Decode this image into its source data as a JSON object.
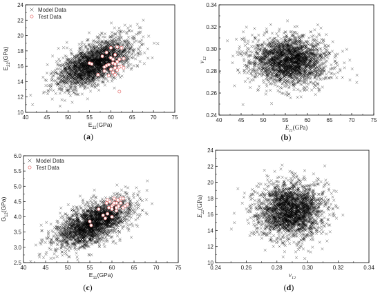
{
  "chart_data": [
    {
      "id": "a",
      "type": "scatter",
      "caption": "(a)",
      "xlabel": "E",
      "xlabel_sub": "11",
      "xlabel_unit": "(GPa)",
      "ylabel": "E",
      "ylabel_sub": "22",
      "ylabel_unit": "(GPa)",
      "label_style": "upright",
      "xlim": [
        40,
        75
      ],
      "ylim": [
        10,
        24
      ],
      "xticks": [
        "40",
        "45",
        "50",
        "55",
        "60",
        "65",
        "70",
        "75"
      ],
      "yticks": [
        "10",
        "12",
        "14",
        "16",
        "18",
        "20",
        "22",
        "24"
      ],
      "legend": {
        "position": "top-left",
        "entries": [
          "Model Data",
          "Test Data"
        ]
      },
      "model": {
        "n": 2400,
        "mx": 56,
        "my": 16.3,
        "sx": 4.3,
        "sy": 1.6,
        "rho": 0.6,
        "color": "#000000"
      },
      "test_color": "#e87b7b",
      "test_points": [
        [
          55,
          16.4
        ],
        [
          55.5,
          16.3
        ],
        [
          57,
          14.9
        ],
        [
          58,
          17.3
        ],
        [
          58.5,
          15.9
        ],
        [
          59,
          16.1
        ],
        [
          59,
          17.8
        ],
        [
          59.5,
          16.2
        ],
        [
          60,
          15.6
        ],
        [
          60,
          17.1
        ],
        [
          60,
          18.4
        ],
        [
          60.5,
          16.4
        ],
        [
          60.5,
          15.2
        ],
        [
          61,
          16.3
        ],
        [
          61,
          17.5
        ],
        [
          61,
          15.8
        ],
        [
          61.5,
          18.5
        ],
        [
          61.5,
          16.6
        ],
        [
          62,
          15.9
        ],
        [
          62,
          16.9
        ],
        [
          62.5,
          18.4
        ],
        [
          62.5,
          16.0
        ],
        [
          63,
          15.8
        ],
        [
          61.5,
          15.5
        ],
        [
          62,
          12.7
        ],
        [
          59.5,
          14.8
        ],
        [
          58.5,
          15.4
        ],
        [
          60.5,
          16.9
        ],
        [
          61,
          14.9
        ],
        [
          63,
          17.0
        ]
      ]
    },
    {
      "id": "b",
      "type": "scatter",
      "caption": "(b)",
      "xlabel": "E",
      "xlabel_sub": "11",
      "xlabel_unit": "(GPa)",
      "ylabel": "v",
      "ylabel_sub": "12",
      "ylabel_unit": "",
      "label_style": "italic",
      "xlim": [
        40,
        75
      ],
      "ylim": [
        0.24,
        0.34
      ],
      "xticks": [
        "40",
        "45",
        "50",
        "55",
        "60",
        "65",
        "70",
        "75"
      ],
      "yticks": [
        "0.24",
        "0.26",
        "0.28",
        "0.30",
        "0.32",
        "0.34"
      ],
      "model": {
        "n": 2400,
        "mx": 56,
        "my": 0.289,
        "sx": 4.3,
        "sy": 0.011,
        "rho": 0.0,
        "color": "#000000"
      }
    },
    {
      "id": "c",
      "type": "scatter",
      "caption": "(c)",
      "xlabel": "E",
      "xlabel_sub": "11",
      "xlabel_unit": "(GPa)",
      "ylabel": "G",
      "ylabel_sub": "12",
      "ylabel_unit": "(GPa)",
      "label_style": "upright",
      "xlim": [
        40,
        75
      ],
      "ylim": [
        2.5,
        6.0
      ],
      "xticks": [
        "40",
        "45",
        "50",
        "55",
        "60",
        "65",
        "70",
        "75"
      ],
      "yticks": [
        "2.5",
        "3.0",
        "3.5",
        "4.0",
        "4.5",
        "5.0",
        "5.5",
        "6.0"
      ],
      "legend": {
        "position": "top-left",
        "entries": [
          "Model Data",
          "Test Data"
        ]
      },
      "model": {
        "n": 2400,
        "mx": 56,
        "my": 3.8,
        "sx": 4.3,
        "sy": 0.4,
        "rho": 0.6,
        "color": "#000000"
      },
      "test_color": "#e87b7b",
      "test_points": [
        [
          55,
          3.85
        ],
        [
          55.3,
          3.72
        ],
        [
          57,
          4.25
        ],
        [
          58,
          4.05
        ],
        [
          58.5,
          3.95
        ],
        [
          58.8,
          4.45
        ],
        [
          59,
          4.1
        ],
        [
          59.3,
          4.3
        ],
        [
          59.5,
          4.5
        ],
        [
          60,
          4.35
        ],
        [
          60,
          4.0
        ],
        [
          60.3,
          4.4
        ],
        [
          60.5,
          4.6
        ],
        [
          61,
          4.45
        ],
        [
          61,
          4.2
        ],
        [
          61.3,
          4.55
        ],
        [
          61.5,
          4.35
        ],
        [
          62,
          4.45
        ],
        [
          62,
          4.6
        ],
        [
          62.5,
          4.3
        ],
        [
          63,
          4.35
        ],
        [
          63.5,
          4.4
        ],
        [
          61,
          4.3
        ],
        [
          60,
          4.25
        ],
        [
          59,
          4.55
        ],
        [
          62.5,
          4.6
        ],
        [
          60.5,
          4.45
        ]
      ]
    },
    {
      "id": "d",
      "type": "scatter",
      "caption": "(d)",
      "xlabel": "v",
      "xlabel_sub": "12",
      "xlabel_unit": "",
      "ylabel": "E",
      "ylabel_sub": "22",
      "ylabel_unit": "(GPa)",
      "label_style": "italic",
      "xlim": [
        0.24,
        0.34
      ],
      "ylim": [
        10,
        24
      ],
      "xticks": [
        "0.24",
        "0.26",
        "0.28",
        "0.30",
        "0.32",
        "0.34"
      ],
      "yticks": [
        "10",
        "12",
        "14",
        "16",
        "18",
        "20",
        "22",
        "24"
      ],
      "model": {
        "n": 2400,
        "mx": 0.289,
        "my": 16.5,
        "sx": 0.011,
        "sy": 1.7,
        "rho": 0.0,
        "color": "#000000"
      }
    }
  ]
}
